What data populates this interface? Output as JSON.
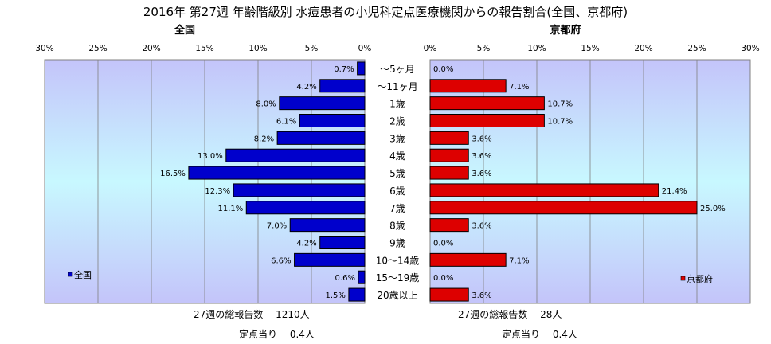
{
  "title": "2016年 第27週 年齢階級別 水痘患者の小児科定点医療機関からの報告割合(全国、京都府)",
  "chart_data": [
    {
      "type": "bar",
      "panel_title": "全国",
      "legend": "全国",
      "color": "#0000cc",
      "xlim": [
        0,
        30
      ],
      "ticks": [
        "30%",
        "25%",
        "20%",
        "15%",
        "10%",
        "5%",
        "0%"
      ],
      "categories": [
        "～5ヶ月",
        "～11ヶ月",
        "1歳",
        "2歳",
        "3歳",
        "4歳",
        "5歳",
        "6歳",
        "7歳",
        "8歳",
        "9歳",
        "10～14歳",
        "15～19歳",
        "20歳以上"
      ],
      "values": [
        0.7,
        4.2,
        8.0,
        6.1,
        8.2,
        13.0,
        16.5,
        12.3,
        11.1,
        7.0,
        4.2,
        6.6,
        0.6,
        1.5
      ],
      "labels": [
        "0.7%",
        "4.2%",
        "8.0%",
        "6.1%",
        "8.2%",
        "13.0%",
        "16.5%",
        "12.3%",
        "11.1%",
        "7.0%",
        "4.2%",
        "6.6%",
        "0.6%",
        "1.5%"
      ]
    },
    {
      "type": "bar",
      "panel_title": "京都府",
      "legend": "京都府",
      "color": "#dd0000",
      "xlim": [
        0,
        30
      ],
      "ticks": [
        "0%",
        "5%",
        "10%",
        "15%",
        "20%",
        "25%",
        "30%"
      ],
      "categories": [
        "～5ヶ月",
        "～11ヶ月",
        "1歳",
        "2歳",
        "3歳",
        "4歳",
        "5歳",
        "6歳",
        "7歳",
        "8歳",
        "9歳",
        "10～14歳",
        "15～19歳",
        "20歳以上"
      ],
      "values": [
        0.0,
        7.1,
        10.7,
        10.7,
        3.6,
        3.6,
        3.6,
        21.4,
        25.0,
        3.6,
        0.0,
        7.1,
        0.0,
        3.6
      ],
      "labels": [
        "0.0%",
        "7.1%",
        "10.7%",
        "10.7%",
        "3.6%",
        "3.6%",
        "3.6%",
        "21.4%",
        "25.0%",
        "3.6%",
        "0.0%",
        "7.1%",
        "0.0%",
        "3.6%"
      ]
    }
  ],
  "footer": {
    "national_total": "27週の総報告数　 1210人",
    "national_per_site": "定点当り　 0.4人",
    "kyoto_total": "27週の総報告数　 28人",
    "kyoto_per_site": "定点当り　 0.4人"
  }
}
